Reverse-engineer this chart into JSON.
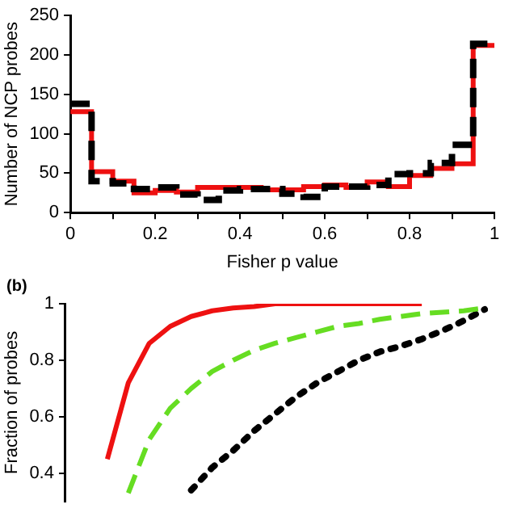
{
  "chart_data": [
    {
      "type": "histogram",
      "xlabel": "Fisher p value",
      "ylabel": "Number of NCP probes",
      "bins": [
        0,
        0.05,
        0.1,
        0.15,
        0.2,
        0.25,
        0.3,
        0.35,
        0.4,
        0.45,
        0.5,
        0.55,
        0.6,
        0.65,
        0.7,
        0.75,
        0.8,
        0.85,
        0.9,
        0.95,
        1
      ],
      "series": [
        {
          "color": "#000000",
          "line_style": "dashed",
          "values": [
            138,
            40,
            37,
            30,
            32,
            23,
            16,
            28,
            30,
            30,
            24,
            20,
            33,
            33,
            35,
            49,
            50,
            63,
            86,
            214
          ]
        },
        {
          "color": "#ee1111",
          "line_style": "solid",
          "values": [
            128,
            52,
            40,
            25,
            28,
            26,
            32,
            32,
            32,
            29,
            29,
            33,
            35,
            32,
            39,
            33,
            47,
            56,
            62,
            212
          ]
        }
      ],
      "xlim": [
        0,
        1
      ],
      "xticks": [
        0,
        {
          "value": 0.1,
          "label": null
        },
        0.2,
        {
          "value": 0.3,
          "label": null
        },
        0.4,
        {
          "value": 0.5,
          "label": null
        },
        0.6,
        {
          "value": 0.7,
          "label": null
        },
        0.8,
        {
          "value": 0.9,
          "label": null
        },
        1
      ],
      "ylim": [
        0,
        250
      ],
      "yticks": [
        0,
        50,
        100,
        150,
        200,
        250
      ],
      "grid": false,
      "legend": false
    },
    {
      "type": "line",
      "annotations": [
        "(b)"
      ],
      "ylabel": "Fraction of probes",
      "categories": [
        null,
        null,
        null,
        null,
        null,
        null,
        null,
        null,
        null,
        null,
        null,
        null,
        null,
        null,
        null,
        null,
        null,
        null,
        null,
        null,
        null
      ],
      "series": [
        {
          "color": "#ee1111",
          "line_style": "solid",
          "values": [
            null,
            null,
            0.45,
            0.72,
            0.86,
            0.92,
            0.955,
            0.975,
            0.985,
            0.99,
            1,
            1,
            1,
            1,
            1,
            1,
            1,
            1,
            null,
            null,
            null
          ]
        },
        {
          "color": "#66dd22",
          "line_style": "dashed",
          "values": [
            null,
            null,
            null,
            0.33,
            0.52,
            0.63,
            0.7,
            0.76,
            0.8,
            0.835,
            0.86,
            0.88,
            0.9,
            0.92,
            0.93,
            0.945,
            0.955,
            0.965,
            0.97,
            0.975,
            0.985
          ]
        },
        {
          "color": "#000000",
          "line_style": "dotted",
          "values": [
            null,
            null,
            null,
            null,
            null,
            null,
            0.34,
            0.42,
            0.48,
            0.55,
            0.61,
            0.67,
            0.72,
            0.76,
            0.8,
            0.83,
            0.85,
            0.875,
            0.905,
            0.94,
            0.98
          ]
        }
      ],
      "ylim": [
        0.3,
        1
      ],
      "yticks": [
        0.4,
        0.6,
        0.8,
        1
      ],
      "tick_labels": "y",
      "grid": false,
      "legend": false
    }
  ]
}
